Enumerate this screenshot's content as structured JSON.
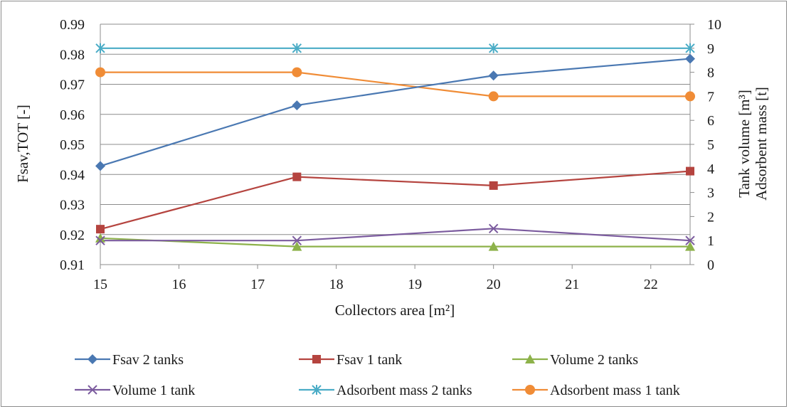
{
  "chart_data": {
    "type": "line",
    "x": [
      15,
      17.5,
      20,
      22.5
    ],
    "xlabel": "Collectors area [m²]",
    "ylabel_left": "Fsav,TOT [-]",
    "ylabel_right": [
      "Tank volume [m³]",
      "Adsorbent mass [t]"
    ],
    "xlim": [
      15,
      22.5
    ],
    "ylim_left": [
      0.91,
      0.99
    ],
    "ylim_right": [
      0,
      10
    ],
    "xticks": [
      "15",
      "16",
      "17",
      "18",
      "19",
      "20",
      "21",
      "22"
    ],
    "yticks_left": [
      "0.91",
      "0.92",
      "0.93",
      "0.94",
      "0.95",
      "0.96",
      "0.97",
      "0.98",
      "0.99"
    ],
    "yticks_right": [
      "0",
      "1",
      "2",
      "3",
      "4",
      "5",
      "6",
      "7",
      "8",
      "9",
      "10"
    ],
    "grid": "horizontal",
    "legend_position": "bottom",
    "series": [
      {
        "name": "Fsav 2 tanks",
        "axis": "left",
        "color": "#4a78b2",
        "marker": "diamond",
        "values": [
          0.9428,
          0.963,
          0.9729,
          0.9785
        ]
      },
      {
        "name": "Fsav 1 tank",
        "axis": "left",
        "color": "#b5443f",
        "marker": "square",
        "values": [
          0.9218,
          0.9392,
          0.9363,
          0.9411
        ]
      },
      {
        "name": "Volume 2 tanks",
        "axis": "right",
        "color": "#8db24a",
        "marker": "triangle",
        "values": [
          1.1,
          0.75,
          0.75,
          0.75
        ]
      },
      {
        "name": "Volume 1 tank",
        "axis": "right",
        "color": "#7b5b9e",
        "marker": "x",
        "values": [
          1.0,
          1.0,
          1.5,
          1.0
        ]
      },
      {
        "name": "Adsorbent mass 2 tanks",
        "axis": "right",
        "color": "#4aacc6",
        "marker": "star",
        "values": [
          9,
          9,
          9,
          9
        ]
      },
      {
        "name": "Adsorbent mass 1 tank",
        "axis": "right",
        "color": "#f08c36",
        "marker": "circle",
        "values": [
          8,
          8,
          7,
          7
        ]
      }
    ]
  }
}
